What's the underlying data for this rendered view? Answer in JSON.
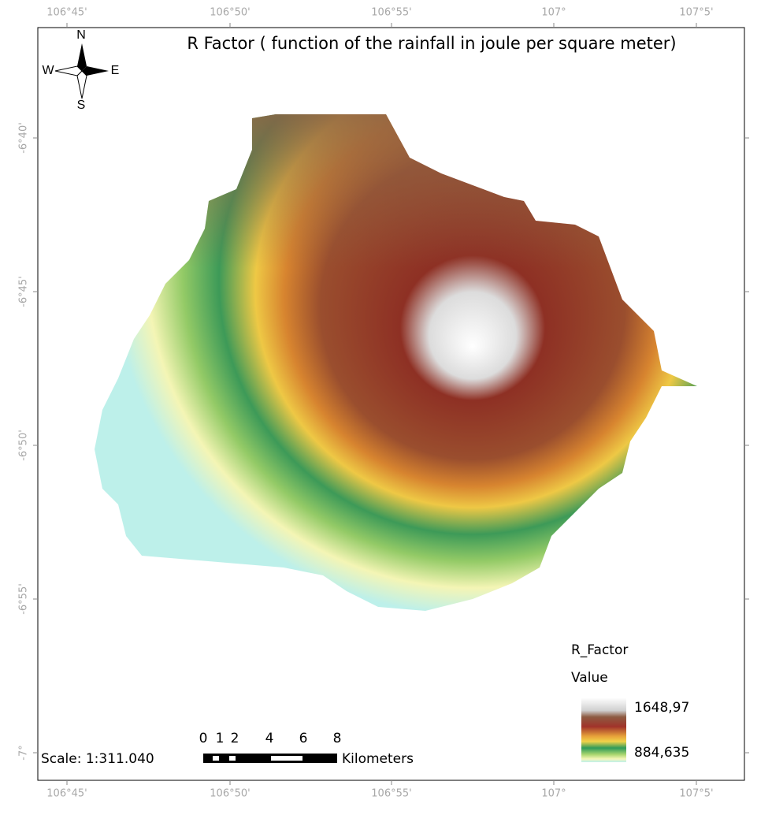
{
  "title": "R Factor ( function of the rainfall in joule per square meter)",
  "longitude_labels": [
    "106°45'",
    "106°50'",
    "106°55'",
    "107°",
    "107°5'"
  ],
  "latitude_labels": [
    "-6°40'",
    "-6°45'",
    "-6°50'",
    "-6°55'",
    "-7°"
  ],
  "compass": {
    "north": "N",
    "west": "W",
    "east": "E",
    "south": "S"
  },
  "scale": {
    "text": "Scale: 1:311.040",
    "bar_labels": [
      "0",
      "1",
      "2",
      "4",
      "6",
      "8"
    ],
    "unit": "Kilometers"
  },
  "legend": {
    "title": "R_Factor",
    "subtitle": "Value",
    "high": "1648,97",
    "low": "884,635"
  }
}
